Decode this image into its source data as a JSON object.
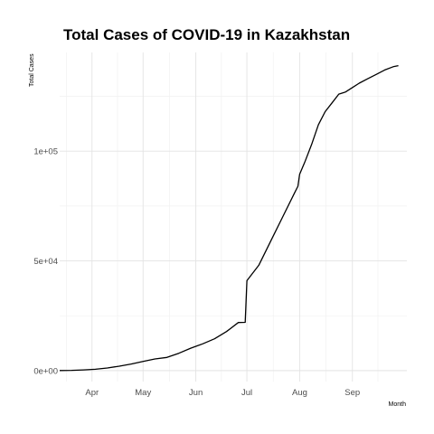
{
  "chart_data": {
    "type": "line",
    "title": "Total Cases of COVID-19 in Kazakhstan",
    "xlabel": "Month",
    "ylabel": "Total Cases",
    "x_type": "date",
    "xlim": [
      "2020-03-13",
      "2020-10-03"
    ],
    "ylim": [
      -5000,
      145000
    ],
    "x_ticks": [
      {
        "value": "2020-04-01",
        "label": "Apr"
      },
      {
        "value": "2020-05-01",
        "label": "May"
      },
      {
        "value": "2020-06-01",
        "label": "Jun"
      },
      {
        "value": "2020-07-01",
        "label": "Jul"
      },
      {
        "value": "2020-08-01",
        "label": "Aug"
      },
      {
        "value": "2020-09-01",
        "label": "Sep"
      }
    ],
    "y_ticks": [
      {
        "value": 0,
        "label": "0e+00"
      },
      {
        "value": 50000,
        "label": "5e+04"
      },
      {
        "value": 100000,
        "label": "1e+05"
      }
    ],
    "grid": true,
    "series": [
      {
        "x": [
          "2020-03-13",
          "2020-03-20",
          "2020-03-27",
          "2020-04-03",
          "2020-04-10",
          "2020-04-17",
          "2020-04-24",
          "2020-05-01",
          "2020-05-08",
          "2020-05-15",
          "2020-05-22",
          "2020-05-29",
          "2020-06-05",
          "2020-06-12",
          "2020-06-19",
          "2020-06-26",
          "2020-06-30",
          "2020-07-01",
          "2020-07-08",
          "2020-07-15",
          "2020-07-22",
          "2020-07-29",
          "2020-07-31",
          "2020-08-01",
          "2020-08-04",
          "2020-08-08",
          "2020-08-12",
          "2020-08-16",
          "2020-08-20",
          "2020-08-24",
          "2020-08-28",
          "2020-09-01",
          "2020-09-05",
          "2020-09-10",
          "2020-09-15",
          "2020-09-20",
          "2020-09-25",
          "2020-09-28"
        ],
        "values": [
          10,
          100,
          300,
          600,
          1200,
          2000,
          3000,
          4200,
          5300,
          6000,
          7900,
          10200,
          12200,
          14500,
          17800,
          21900,
          22000,
          41000,
          48000,
          59000,
          70000,
          81000,
          84000,
          89500,
          95000,
          103000,
          112000,
          118000,
          122000,
          126000,
          127000,
          129000,
          131000,
          133000,
          135000,
          137000,
          138500,
          139000
        ]
      }
    ]
  }
}
